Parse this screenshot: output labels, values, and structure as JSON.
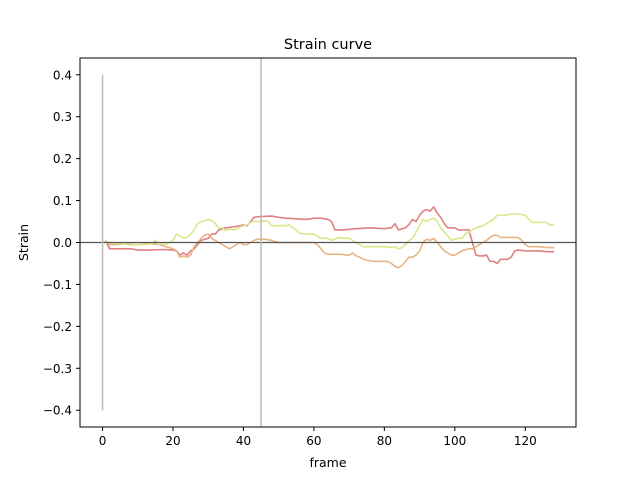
{
  "chart_data": {
    "type": "line",
    "title": "Strain curve",
    "xlabel": "frame",
    "ylabel": "Strain",
    "xlim": [
      -6.4,
      134.4
    ],
    "ylim": [
      -0.44,
      0.44
    ],
    "xticks": [
      0,
      20,
      40,
      60,
      80,
      100,
      120
    ],
    "xtick_labels": [
      "0",
      "20",
      "40",
      "60",
      "80",
      "100",
      "120"
    ],
    "yticks": [
      -0.4,
      -0.3,
      -0.2,
      -0.1,
      0.0,
      0.1,
      0.2,
      0.3,
      0.4
    ],
    "ytick_labels": [
      "−0.4",
      "−0.3",
      "−0.2",
      "−0.1",
      "0.0",
      "0.1",
      "0.2",
      "0.3",
      "0.4"
    ],
    "grid": false,
    "legend": "none",
    "reference_lines": {
      "zero_line": {
        "y": 0,
        "color": "#555555"
      },
      "marker_at_zero": {
        "x": 0,
        "y_range": [
          -0.4,
          0.4
        ],
        "color": "#bbbbbb"
      },
      "current_frame": {
        "x": 45,
        "color": "#bbbbbb"
      }
    },
    "series": [
      {
        "color": "#e08080",
        "points": [
          [
            0,
            0.0
          ],
          [
            1,
            0.003
          ],
          [
            2,
            -0.015
          ],
          [
            5,
            -0.015
          ],
          [
            8,
            -0.015
          ],
          [
            10,
            -0.018
          ],
          [
            14,
            -0.018
          ],
          [
            16,
            -0.017
          ],
          [
            18,
            -0.017
          ],
          [
            20,
            -0.018
          ],
          [
            21,
            -0.02
          ],
          [
            22,
            -0.03
          ],
          [
            23,
            -0.025
          ],
          [
            24,
            -0.03
          ],
          [
            25,
            -0.02
          ],
          [
            26,
            -0.015
          ],
          [
            27,
            -0.005
          ],
          [
            28,
            0.005
          ],
          [
            30,
            0.01
          ],
          [
            31,
            0.02
          ],
          [
            32,
            0.02
          ],
          [
            33,
            0.03
          ],
          [
            35,
            0.035
          ],
          [
            37,
            0.037
          ],
          [
            39,
            0.04
          ],
          [
            40,
            0.042
          ],
          [
            41,
            0.04
          ],
          [
            42,
            0.05
          ],
          [
            43,
            0.06
          ],
          [
            45,
            0.062
          ],
          [
            48,
            0.063
          ],
          [
            50,
            0.06
          ],
          [
            52,
            0.058
          ],
          [
            54,
            0.057
          ],
          [
            56,
            0.056
          ],
          [
            58,
            0.055
          ],
          [
            60,
            0.058
          ],
          [
            62,
            0.058
          ],
          [
            64,
            0.055
          ],
          [
            65,
            0.05
          ],
          [
            66,
            0.03
          ],
          [
            68,
            0.03
          ],
          [
            72,
            0.033
          ],
          [
            76,
            0.035
          ],
          [
            80,
            0.033
          ],
          [
            82,
            0.035
          ],
          [
            83,
            0.045
          ],
          [
            84,
            0.03
          ],
          [
            86,
            0.035
          ],
          [
            87,
            0.043
          ],
          [
            88,
            0.055
          ],
          [
            89,
            0.05
          ],
          [
            90,
            0.065
          ],
          [
            91,
            0.075
          ],
          [
            92,
            0.078
          ],
          [
            93,
            0.075
          ],
          [
            94,
            0.085
          ],
          [
            95,
            0.07
          ],
          [
            96,
            0.06
          ],
          [
            97,
            0.045
          ],
          [
            98,
            0.035
          ],
          [
            100,
            0.035
          ],
          [
            101,
            0.03
          ],
          [
            102,
            0.03
          ],
          [
            104,
            0.03
          ],
          [
            105,
            0.0
          ],
          [
            106,
            -0.03
          ],
          [
            107,
            -0.032
          ],
          [
            108,
            -0.032
          ],
          [
            109,
            -0.03
          ],
          [
            110,
            -0.045
          ],
          [
            111,
            -0.045
          ],
          [
            112,
            -0.05
          ],
          [
            113,
            -0.04
          ],
          [
            115,
            -0.04
          ],
          [
            116,
            -0.035
          ],
          [
            117,
            -0.02
          ],
          [
            118,
            -0.018
          ],
          [
            120,
            -0.02
          ],
          [
            122,
            -0.02
          ],
          [
            124,
            -0.02
          ],
          [
            126,
            -0.022
          ],
          [
            128,
            -0.022
          ]
        ]
      },
      {
        "color": "#e8b484",
        "points": [
          [
            0,
            0.0
          ],
          [
            1,
            0.002
          ],
          [
            2,
            -0.005
          ],
          [
            4,
            -0.005
          ],
          [
            6,
            -0.003
          ],
          [
            8,
            -0.005
          ],
          [
            10,
            -0.005
          ],
          [
            12,
            -0.003
          ],
          [
            14,
            -0.003
          ],
          [
            16,
            -0.005
          ],
          [
            18,
            -0.01
          ],
          [
            20,
            -0.015
          ],
          [
            21,
            -0.02
          ],
          [
            22,
            -0.035
          ],
          [
            23,
            -0.032
          ],
          [
            24,
            -0.035
          ],
          [
            25,
            -0.03
          ],
          [
            26,
            -0.01
          ],
          [
            27,
            0.0
          ],
          [
            28,
            0.01
          ],
          [
            29,
            0.018
          ],
          [
            30,
            0.02
          ],
          [
            31,
            0.01
          ],
          [
            32,
            0.005
          ],
          [
            33,
            0.0
          ],
          [
            34,
            -0.005
          ],
          [
            35,
            -0.01
          ],
          [
            36,
            -0.015
          ],
          [
            37,
            -0.01
          ],
          [
            38,
            -0.005
          ],
          [
            39,
            0.0
          ],
          [
            40,
            -0.005
          ],
          [
            41,
            -0.005
          ],
          [
            42,
            0.0
          ],
          [
            43,
            0.005
          ],
          [
            44,
            0.008
          ],
          [
            46,
            0.008
          ],
          [
            48,
            0.005
          ],
          [
            49,
            0.002
          ],
          [
            50,
            0.0
          ],
          [
            52,
            0.0
          ],
          [
            54,
            0.0
          ],
          [
            56,
            0.0
          ],
          [
            58,
            0.0
          ],
          [
            60,
            0.0
          ],
          [
            61,
            -0.005
          ],
          [
            62,
            -0.015
          ],
          [
            63,
            -0.025
          ],
          [
            64,
            -0.028
          ],
          [
            66,
            -0.028
          ],
          [
            68,
            -0.028
          ],
          [
            69,
            -0.03
          ],
          [
            70,
            -0.03
          ],
          [
            71,
            -0.025
          ],
          [
            72,
            -0.032
          ],
          [
            73,
            -0.035
          ],
          [
            74,
            -0.04
          ],
          [
            75,
            -0.042
          ],
          [
            77,
            -0.045
          ],
          [
            79,
            -0.045
          ],
          [
            81,
            -0.045
          ],
          [
            82,
            -0.05
          ],
          [
            83,
            -0.057
          ],
          [
            84,
            -0.06
          ],
          [
            85,
            -0.055
          ],
          [
            86,
            -0.045
          ],
          [
            87,
            -0.035
          ],
          [
            88,
            -0.035
          ],
          [
            89,
            -0.03
          ],
          [
            90,
            -0.02
          ],
          [
            91,
            0.0
          ],
          [
            92,
            0.008
          ],
          [
            93,
            0.005
          ],
          [
            94,
            0.01
          ],
          [
            95,
            0.0
          ],
          [
            96,
            -0.01
          ],
          [
            97,
            -0.02
          ],
          [
            98,
            -0.025
          ],
          [
            99,
            -0.03
          ],
          [
            100,
            -0.03
          ],
          [
            101,
            -0.025
          ],
          [
            102,
            -0.02
          ],
          [
            104,
            -0.015
          ],
          [
            105,
            -0.015
          ],
          [
            106,
            -0.01
          ],
          [
            107,
            -0.005
          ],
          [
            108,
            0.0
          ],
          [
            109,
            0.005
          ],
          [
            110,
            0.012
          ],
          [
            111,
            0.017
          ],
          [
            112,
            0.017
          ],
          [
            113,
            0.012
          ],
          [
            114,
            0.012
          ],
          [
            116,
            0.012
          ],
          [
            118,
            0.012
          ],
          [
            119,
            0.005
          ],
          [
            120,
            -0.005
          ],
          [
            121,
            -0.01
          ],
          [
            122,
            -0.01
          ],
          [
            124,
            -0.01
          ],
          [
            126,
            -0.012
          ],
          [
            128,
            -0.012
          ]
        ]
      },
      {
        "color": "#d8e88c",
        "points": [
          [
            0,
            0.0
          ],
          [
            1,
            0.002
          ],
          [
            2,
            0.0
          ],
          [
            4,
            -0.002
          ],
          [
            6,
            -0.002
          ],
          [
            8,
            -0.003
          ],
          [
            10,
            -0.005
          ],
          [
            12,
            -0.005
          ],
          [
            14,
            -0.003
          ],
          [
            15,
            0.005
          ],
          [
            16,
            -0.005
          ],
          [
            17,
            -0.003
          ],
          [
            18,
            -0.005
          ],
          [
            19,
            0.0
          ],
          [
            20,
            0.005
          ],
          [
            21,
            0.02
          ],
          [
            22,
            0.015
          ],
          [
            23,
            0.01
          ],
          [
            24,
            0.012
          ],
          [
            25,
            0.02
          ],
          [
            26,
            0.03
          ],
          [
            27,
            0.045
          ],
          [
            28,
            0.05
          ],
          [
            29,
            0.052
          ],
          [
            30,
            0.055
          ],
          [
            31,
            0.052
          ],
          [
            32,
            0.045
          ],
          [
            33,
            0.035
          ],
          [
            34,
            0.035
          ],
          [
            35,
            0.028
          ],
          [
            36,
            0.032
          ],
          [
            37,
            0.03
          ],
          [
            38,
            0.032
          ],
          [
            39,
            0.037
          ],
          [
            40,
            0.04
          ],
          [
            41,
            0.042
          ],
          [
            42,
            0.048
          ],
          [
            43,
            0.05
          ],
          [
            44,
            0.05
          ],
          [
            45,
            0.05
          ],
          [
            46,
            0.052
          ],
          [
            47,
            0.05
          ],
          [
            48,
            0.04
          ],
          [
            50,
            0.04
          ],
          [
            52,
            0.04
          ],
          [
            53,
            0.042
          ],
          [
            54,
            0.035
          ],
          [
            55,
            0.03
          ],
          [
            56,
            0.022
          ],
          [
            58,
            0.02
          ],
          [
            60,
            0.02
          ],
          [
            61,
            0.015
          ],
          [
            62,
            0.01
          ],
          [
            64,
            0.01
          ],
          [
            65,
            0.005
          ],
          [
            66,
            0.008
          ],
          [
            67,
            0.012
          ],
          [
            68,
            0.01
          ],
          [
            70,
            0.01
          ],
          [
            71,
            0.005
          ],
          [
            72,
            0.0
          ],
          [
            73,
            -0.005
          ],
          [
            74,
            -0.01
          ],
          [
            76,
            -0.01
          ],
          [
            78,
            -0.01
          ],
          [
            80,
            -0.01
          ],
          [
            82,
            -0.012
          ],
          [
            83,
            -0.01
          ],
          [
            84,
            -0.015
          ],
          [
            85,
            -0.012
          ],
          [
            86,
            -0.005
          ],
          [
            87,
            0.005
          ],
          [
            88,
            0.01
          ],
          [
            89,
            0.025
          ],
          [
            90,
            0.04
          ],
          [
            91,
            0.055
          ],
          [
            92,
            0.05
          ],
          [
            93,
            0.055
          ],
          [
            94,
            0.058
          ],
          [
            95,
            0.05
          ],
          [
            96,
            0.035
          ],
          [
            97,
            0.025
          ],
          [
            98,
            0.015
          ],
          [
            99,
            0.005
          ],
          [
            100,
            0.008
          ],
          [
            101,
            0.01
          ],
          [
            102,
            0.01
          ],
          [
            103,
            0.02
          ],
          [
            104,
            0.025
          ],
          [
            106,
            0.035
          ],
          [
            108,
            0.04
          ],
          [
            110,
            0.05
          ],
          [
            111,
            0.055
          ],
          [
            112,
            0.065
          ],
          [
            114,
            0.065
          ],
          [
            116,
            0.068
          ],
          [
            118,
            0.068
          ],
          [
            120,
            0.065
          ],
          [
            121,
            0.055
          ],
          [
            122,
            0.048
          ],
          [
            124,
            0.048
          ],
          [
            126,
            0.048
          ],
          [
            127,
            0.042
          ],
          [
            128,
            0.042
          ]
        ]
      }
    ]
  }
}
